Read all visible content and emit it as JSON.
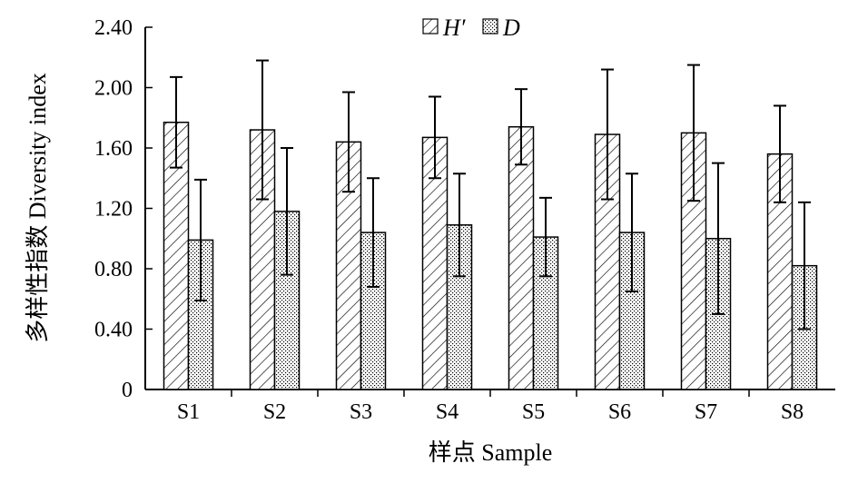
{
  "chart_data": {
    "type": "bar",
    "categories": [
      "S1",
      "S2",
      "S3",
      "S4",
      "S5",
      "S6",
      "S7",
      "S8"
    ],
    "series": [
      {
        "name": "H′",
        "pattern": "diagonal-hatch",
        "values": [
          1.77,
          1.72,
          1.64,
          1.67,
          1.74,
          1.69,
          1.7,
          1.56
        ],
        "error": [
          0.3,
          0.46,
          0.33,
          0.27,
          0.25,
          0.43,
          0.45,
          0.32
        ]
      },
      {
        "name": "D",
        "pattern": "dot-stipple",
        "values": [
          0.99,
          1.18,
          1.04,
          1.09,
          1.01,
          1.04,
          1.0,
          0.82
        ],
        "error": [
          0.4,
          0.42,
          0.36,
          0.34,
          0.26,
          0.39,
          0.5,
          0.42
        ]
      }
    ],
    "xlabel": "样点 Sample",
    "ylabel": "多样性指数 Diversity index",
    "ylim": [
      0,
      2.4
    ],
    "yticks": [
      "0",
      "0.40",
      "0.80",
      "1.20",
      "1.60",
      "2.00",
      "2.40"
    ],
    "ytick_values": [
      0,
      0.4,
      0.8,
      1.2,
      1.6,
      2.0,
      2.4
    ],
    "legend_position": "top-center",
    "grid": false,
    "colors": {
      "bar_fill": "#ffffff",
      "ink": "#000000"
    }
  }
}
